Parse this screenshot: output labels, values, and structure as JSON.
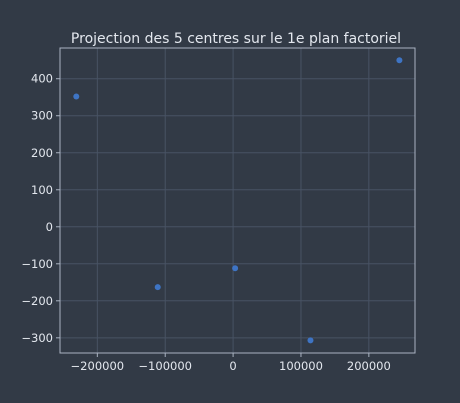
{
  "chart_data": {
    "type": "scatter",
    "title": "Projection des 5 centres sur le 1e plan factoriel",
    "xlabel": "",
    "ylabel": "",
    "grid": true,
    "xlim": [
      -255000,
      268000
    ],
    "ylim": [
      -341,
      483
    ],
    "x_ticks": [
      -200000,
      -100000,
      0,
      100000,
      200000
    ],
    "x_tick_labels": [
      "−200000",
      "−100000",
      "0",
      "100000",
      "200000"
    ],
    "y_ticks": [
      -300,
      -200,
      -100,
      0,
      100,
      200,
      300,
      400
    ],
    "y_tick_labels": [
      "−300",
      "−200",
      "−100",
      "0",
      "100",
      "200",
      "300",
      "400"
    ],
    "point_color": "#3e74c4",
    "points": [
      {
        "x": -231000,
        "y": 352
      },
      {
        "x": -111000,
        "y": -163
      },
      {
        "x": 3000,
        "y": -112
      },
      {
        "x": 114000,
        "y": -307
      },
      {
        "x": 245000,
        "y": 450
      }
    ]
  }
}
